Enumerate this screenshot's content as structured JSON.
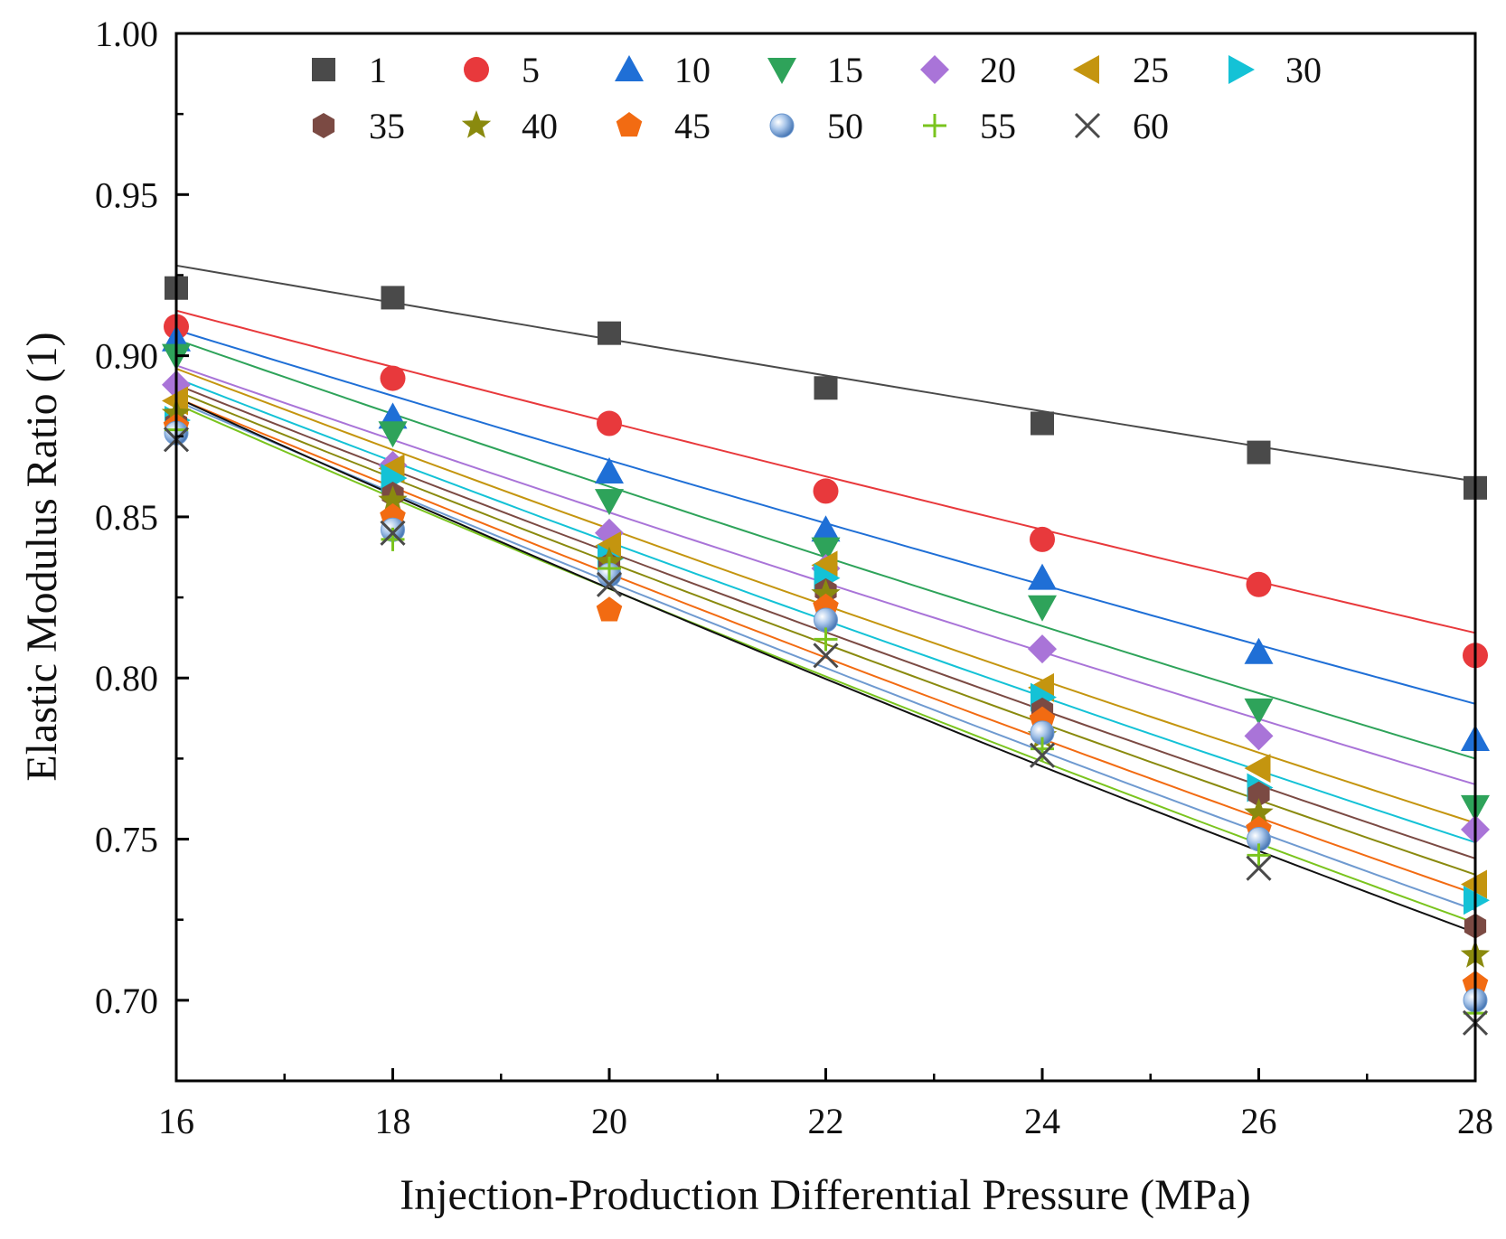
{
  "chart_data": {
    "type": "scatter",
    "xlabel": "Injection-Production Differential Pressure (MPa)",
    "ylabel": "Elastic Modulus Ratio (1)",
    "xlim": [
      16,
      28
    ],
    "ylim": [
      0.675,
      1.0
    ],
    "x_ticks": [
      16,
      18,
      20,
      22,
      24,
      26,
      28
    ],
    "x_tick_labels": [
      "16",
      "18",
      "20",
      "22",
      "24",
      "26",
      "28"
    ],
    "x_minor_step": 1,
    "y_ticks": [
      0.7,
      0.75,
      0.8,
      0.85,
      0.9,
      0.95,
      1.0
    ],
    "y_tick_labels": [
      "0.70",
      "0.75",
      "0.80",
      "0.85",
      "0.90",
      "0.95",
      "1.00"
    ],
    "y_minor_step": 0.025,
    "grid": false,
    "legend_position": "top",
    "x": [
      16,
      18,
      20,
      22,
      24,
      26,
      28
    ],
    "series": [
      {
        "name": "1",
        "marker": "square",
        "color": "#4a4a4a",
        "line_color": "#4a4a4a",
        "values": [
          0.921,
          0.918,
          0.907,
          0.89,
          0.879,
          0.87,
          0.859
        ],
        "fit": [
          0.928,
          0.861
        ]
      },
      {
        "name": "5",
        "marker": "circle",
        "color": "#e8393c",
        "line_color": "#e8393c",
        "values": [
          0.909,
          0.893,
          0.879,
          0.858,
          0.843,
          0.829,
          0.807
        ],
        "fit": [
          0.914,
          0.814
        ]
      },
      {
        "name": "10",
        "marker": "triangle-up",
        "color": "#1f6fd6",
        "line_color": "#1f6fd6",
        "values": [
          0.905,
          0.881,
          0.864,
          0.846,
          0.831,
          0.808,
          0.781
        ],
        "fit": [
          0.908,
          0.792
        ]
      },
      {
        "name": "15",
        "marker": "triangle-down",
        "color": "#2ea35a",
        "line_color": "#2ea35a",
        "values": [
          0.9,
          0.876,
          0.855,
          0.84,
          0.822,
          0.79,
          0.76
        ],
        "fit": [
          0.905,
          0.775
        ]
      },
      {
        "name": "20",
        "marker": "diamond",
        "color": "#a974d8",
        "line_color": "#a974d8",
        "values": [
          0.891,
          0.866,
          0.845,
          0.834,
          0.809,
          0.782,
          0.753
        ],
        "fit": [
          0.897,
          0.767
        ]
      },
      {
        "name": "25",
        "marker": "triangle-left",
        "color": "#c4950f",
        "line_color": "#c4950f",
        "values": [
          0.886,
          0.865,
          0.841,
          0.835,
          0.797,
          0.772,
          0.736
        ],
        "fit": [
          0.896,
          0.755
        ]
      },
      {
        "name": "30",
        "marker": "triangle-right",
        "color": "#14c2d6",
        "line_color": "#14c2d6",
        "values": [
          0.88,
          0.862,
          0.837,
          0.831,
          0.794,
          0.766,
          0.731
        ],
        "fit": [
          0.893,
          0.749
        ]
      },
      {
        "name": "35",
        "marker": "hexagon",
        "color": "#7b4a43",
        "line_color": "#7b4a43",
        "values": [
          0.879,
          0.857,
          0.835,
          0.827,
          0.79,
          0.764,
          0.723
        ],
        "fit": [
          0.891,
          0.744
        ]
      },
      {
        "name": "40",
        "marker": "star",
        "color": "#8a8a0e",
        "line_color": "#8a8a0e",
        "values": [
          0.882,
          0.855,
          0.836,
          0.826,
          0.782,
          0.758,
          0.714
        ],
        "fit": [
          0.889,
          0.739
        ]
      },
      {
        "name": "45",
        "marker": "pentagon",
        "color": "#f26b12",
        "line_color": "#f26b12",
        "values": [
          0.878,
          0.85,
          0.821,
          0.822,
          0.787,
          0.753,
          0.705
        ],
        "fit": [
          0.887,
          0.733
        ]
      },
      {
        "name": "50",
        "marker": "sphere",
        "color": "#6f9ad0",
        "line_color": "#6f9ad0",
        "values": [
          0.876,
          0.846,
          0.832,
          0.818,
          0.783,
          0.75,
          0.7
        ],
        "fit": [
          0.886,
          0.728
        ]
      },
      {
        "name": "55",
        "marker": "plus",
        "color": "#7ac41e",
        "line_color": "#7ac41e",
        "values": [
          0.877,
          0.843,
          0.834,
          0.812,
          0.778,
          0.745,
          0.696
        ],
        "fit": [
          0.885,
          0.724
        ]
      },
      {
        "name": "60",
        "marker": "cross",
        "color": "#4a4a4a",
        "line_color": "#111111",
        "values": [
          0.874,
          0.845,
          0.829,
          0.807,
          0.776,
          0.741,
          0.693
        ],
        "fit": [
          0.887,
          0.721
        ]
      }
    ]
  }
}
